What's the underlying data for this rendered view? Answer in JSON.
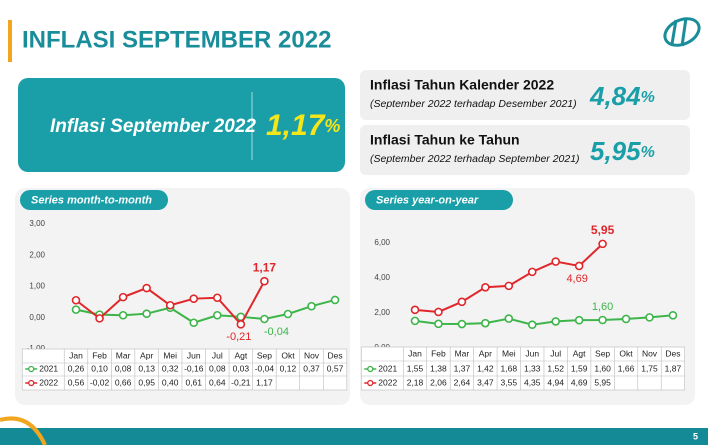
{
  "header": {
    "title": "INFLASI SEPTEMBER 2022",
    "page": "5"
  },
  "main_card": {
    "label": "Inflasi September 2022",
    "value": {
      "value": 1.17,
      "label": "1,17"
    },
    "unit": "%"
  },
  "side_cards": [
    {
      "title": "Inflasi Tahun Kalender 2022",
      "subtitle": "(September 2022 terhadap Desember 2021)",
      "value": {
        "value": 4.84,
        "label": "4,84"
      },
      "unit": "%"
    },
    {
      "title": "Inflasi Tahun ke Tahun",
      "subtitle": "(September 2022 terhadap September 2021)",
      "value": {
        "value": 5.95,
        "label": "5,95"
      },
      "unit": "%"
    }
  ],
  "chart_data": [
    {
      "type": "line",
      "title": "Series month-to-month",
      "categories": [
        "Jan",
        "Feb",
        "Mar",
        "Apr",
        "Mei",
        "Jun",
        "Jul",
        "Agt",
        "Sep",
        "Okt",
        "Nov",
        "Des"
      ],
      "ylim": [
        -1,
        3
      ],
      "yticks": [
        {
          "value": -1,
          "label": "-1,00"
        },
        {
          "value": 0,
          "label": "0,00"
        },
        {
          "value": 1,
          "label": "1,00"
        },
        {
          "value": 2,
          "label": "2,00"
        },
        {
          "value": 3,
          "label": "3,00"
        }
      ],
      "grid": false,
      "series": [
        {
          "name": "2021",
          "color": "#3db54a",
          "values": [
            0.26,
            0.1,
            0.08,
            0.13,
            0.32,
            -0.16,
            0.08,
            0.03,
            -0.04,
            0.12,
            0.37,
            0.57
          ],
          "value_labels": [
            "0,26",
            "0,10",
            "0,08",
            "0,13",
            "0,32",
            "-0,16",
            "0,08",
            "0,03",
            "-0,04",
            "0,12",
            "0,37",
            "0,57"
          ]
        },
        {
          "name": "2022",
          "color": "#e0262a",
          "values": [
            0.56,
            -0.02,
            0.66,
            0.95,
            0.4,
            0.61,
            0.64,
            -0.21,
            1.17,
            null,
            null,
            null
          ],
          "value_labels": [
            "0,56",
            "-0,02",
            "0,66",
            "0,95",
            "0,40",
            "0,61",
            "0,64",
            "-0,21",
            "1,17",
            null,
            null,
            null
          ]
        }
      ],
      "annotations": [
        {
          "text": "1,17",
          "series": "2022",
          "category": "Sep",
          "position": "above"
        },
        {
          "text": "-0,21",
          "series": "2022",
          "category": "Agt",
          "position": "below"
        },
        {
          "text": "-0,04",
          "series": "2021",
          "category": "Sep",
          "position": "below"
        }
      ]
    },
    {
      "type": "line",
      "title": "Series year-on-year",
      "categories": [
        "Jan",
        "Feb",
        "Mar",
        "Apr",
        "Mei",
        "Jun",
        "Jul",
        "Agt",
        "Sep",
        "Okt",
        "Nov",
        "Des"
      ],
      "ylim": [
        0,
        7
      ],
      "yticks": [
        {
          "value": 0,
          "label": "0,00"
        },
        {
          "value": 2,
          "label": "2,00"
        },
        {
          "value": 4,
          "label": "4,00"
        },
        {
          "value": 6,
          "label": "6,00"
        }
      ],
      "grid": false,
      "series": [
        {
          "name": "2021",
          "color": "#3db54a",
          "values": [
            1.55,
            1.38,
            1.37,
            1.42,
            1.68,
            1.33,
            1.52,
            1.59,
            1.6,
            1.66,
            1.75,
            1.87
          ],
          "value_labels": [
            "1,55",
            "1,38",
            "1,37",
            "1,42",
            "1,68",
            "1,33",
            "1,52",
            "1,59",
            "1,60",
            "1,66",
            "1,75",
            "1,87"
          ]
        },
        {
          "name": "2022",
          "color": "#e0262a",
          "values": [
            2.18,
            2.06,
            2.64,
            3.47,
            3.55,
            4.35,
            4.94,
            4.69,
            5.95,
            null,
            null,
            null
          ],
          "value_labels": [
            "2,18",
            "2,06",
            "2,64",
            "3,47",
            "3,55",
            "4,35",
            "4,94",
            "4,69",
            "5,95",
            null,
            null,
            null
          ]
        }
      ],
      "annotations": [
        {
          "text": "5,95",
          "series": "2022",
          "category": "Sep",
          "position": "above"
        },
        {
          "text": "4,69",
          "series": "2022",
          "category": "Agt",
          "position": "below"
        },
        {
          "text": "1,60",
          "series": "2021",
          "category": "Sep",
          "position": "above"
        }
      ]
    }
  ]
}
